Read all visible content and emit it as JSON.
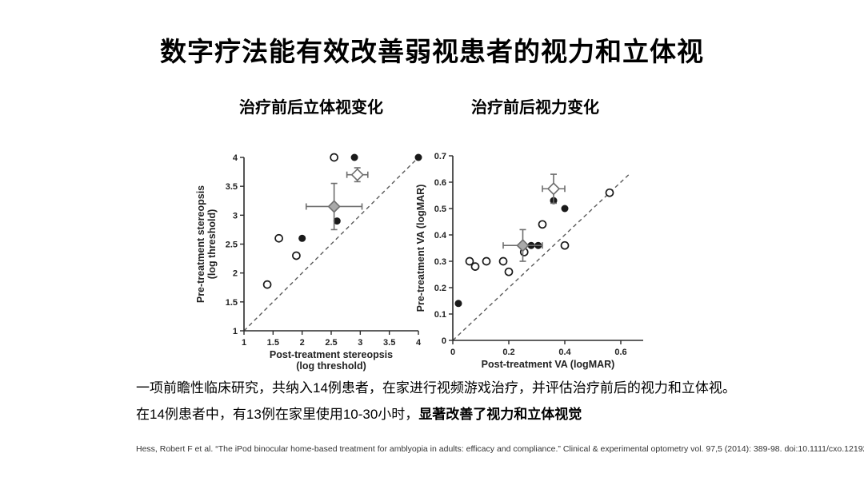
{
  "slide": {
    "title": "数字疗法能有效改善弱视患者的视力和立体视",
    "body_line1": "一项前瞻性临床研究，共纳入14例患者，在家进行视频游戏治疗，并评估治疗前后的视力和立体视。",
    "body_line2_normal": "在14例患者中，有13例在家里使用10-30小时，",
    "body_line2_bold": "显著改善了视力和立体视觉",
    "citation": "Hess, Robert F et al. “The iPod binocular home-based treatment for amblyopia in adults: efficacy and compliance.” Clinical & experimental optometry vol. 97,5 (2014): 389-98. doi:10.1111/cxo.12192"
  },
  "colors": {
    "background": "#ffffff",
    "text": "#000000",
    "axis": "#2b2b2b",
    "point": "#1a1a1a",
    "error": "#6e6e6e",
    "diamond_gray": "#a9a9a9",
    "dash": "#5a5a5a"
  },
  "chart_data": [
    {
      "type": "scatter",
      "title": "治疗前后立体视变化",
      "xlabel": [
        "Post-treatment stereopsis",
        "(log threshold)"
      ],
      "ylabel": [
        "Pre-treatment stereopsis",
        "(log threshold)"
      ],
      "xlim": [
        1,
        4
      ],
      "ylim": [
        1,
        4
      ],
      "xticks": [
        "1",
        "1.5",
        "2",
        "2.5",
        "3",
        "3.5",
        "4"
      ],
      "yticks": [
        "1",
        "1.5",
        "2",
        "2.5",
        "3",
        "3.5",
        "4"
      ],
      "grid": false,
      "identity_line": [
        [
          1,
          1
        ],
        [
          4,
          4
        ]
      ],
      "series": [
        {
          "name": "subject-open-circle",
          "marker": "circle-open",
          "points": [
            [
              2.55,
              4
            ],
            [
              1.6,
              2.6
            ],
            [
              1.9,
              2.3
            ],
            [
              1.4,
              1.8
            ]
          ]
        },
        {
          "name": "subject-filled-circle",
          "marker": "circle-filled",
          "points": [
            [
              2.9,
              4
            ],
            [
              4,
              4
            ],
            [
              2.6,
              2.9
            ],
            [
              2.0,
              2.6
            ]
          ]
        },
        {
          "name": "mean-open-diamond",
          "marker": "diamond-open",
          "points": [
            [
              2.95,
              3.7
            ]
          ],
          "xerr": 0.18,
          "yerr": 0.12
        },
        {
          "name": "mean-gray-diamond",
          "marker": "diamond-gray",
          "points": [
            [
              2.55,
              3.15
            ]
          ],
          "xerr": 0.48,
          "yerr": 0.4
        }
      ]
    },
    {
      "type": "scatter",
      "title": "治疗前后视力变化",
      "xlabel": [
        "Post-treatment VA (logMAR)"
      ],
      "ylabel": [
        "Pre-treatment VA (logMAR)"
      ],
      "xlim": [
        0,
        0.68
      ],
      "ylim": [
        0,
        0.7
      ],
      "xticks": [
        "0",
        "0.2",
        "0.4",
        "0.6"
      ],
      "yticks": [
        "0",
        "0.1",
        "0.2",
        "0.3",
        "0.4",
        "0.5",
        "0.6",
        "0.7"
      ],
      "grid": false,
      "identity_line": [
        [
          0,
          0
        ],
        [
          0.63,
          0.63
        ]
      ],
      "series": [
        {
          "name": "subject-open-circle",
          "marker": "circle-open",
          "points": [
            [
              0.06,
              0.3
            ],
            [
              0.08,
              0.28
            ],
            [
              0.12,
              0.3
            ],
            [
              0.18,
              0.3
            ],
            [
              0.2,
              0.26
            ],
            [
              0.255,
              0.335
            ],
            [
              0.32,
              0.44
            ],
            [
              0.4,
              0.36
            ],
            [
              0.56,
              0.56
            ]
          ]
        },
        {
          "name": "subject-filled-circle",
          "marker": "circle-filled",
          "points": [
            [
              0.02,
              0.14
            ],
            [
              0.28,
              0.36
            ],
            [
              0.305,
              0.36
            ],
            [
              0.36,
              0.53
            ],
            [
              0.4,
              0.5
            ]
          ]
        },
        {
          "name": "mean-open-diamond",
          "marker": "diamond-open",
          "points": [
            [
              0.36,
              0.575
            ]
          ],
          "xerr": 0.04,
          "yerr": 0.055
        },
        {
          "name": "mean-gray-diamond",
          "marker": "diamond-gray",
          "points": [
            [
              0.25,
              0.36
            ]
          ],
          "xerr": 0.07,
          "yerr": 0.06
        }
      ]
    }
  ]
}
